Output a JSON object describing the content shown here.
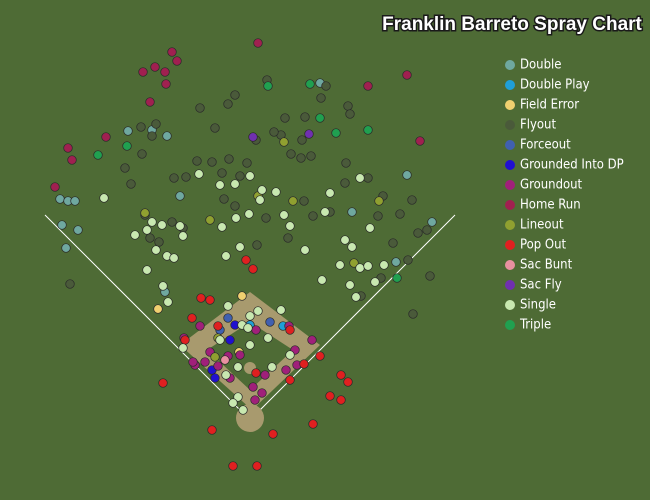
{
  "chart_data": {
    "type": "scatter",
    "title": "Franklin Barreto Spray Chart",
    "xlim": [
      0,
      260
    ],
    "ylim": [
      200,
      0
    ],
    "series": [
      {
        "name": "Double",
        "color": "#6fa8a0",
        "x": [
          24,
          27.2,
          30,
          24.8,
          31.2,
          26.4,
          51.2,
          60.8,
          66.8,
          128,
          162.8,
          172.8,
          140.8,
          72,
          158.4,
          66
        ],
        "y": [
          79.6,
          80.4,
          80.4,
          90,
          92,
          99.2,
          52.4,
          52,
          54.4,
          33.2,
          70,
          88.8,
          84.8,
          78.4,
          104.8,
          116.8
        ]
      },
      {
        "name": "Double Play",
        "color": "#1f9fd8",
        "x": [
          100,
          113.2
        ],
        "y": [
          130,
          130.4
        ]
      },
      {
        "name": "Field Error",
        "color": "#f0d070",
        "x": [
          96.8,
          63.2,
          95.6
        ],
        "y": [
          118.4,
          123.6,
          140.8
        ]
      },
      {
        "name": "Flyout",
        "color": "#4a5a3a",
        "x": [
          80,
          91.2,
          94,
          106.8,
          130.4,
          128.4,
          139.2,
          140,
          122,
          114,
          112.4,
          120.8,
          116.4,
          120.4,
          124.4,
          86,
          84.8,
          88.8,
          91.6,
          96,
          98.8,
          102.4,
          109.6,
          50,
          56.8,
          60.8,
          56.4,
          62.4,
          52.4,
          69.6,
          74.4,
          78.8,
          138.4,
          138,
          147.2,
          153.2,
          151.2,
          160,
          157.2,
          163.2,
          167.2,
          170.8,
          164.8,
          115.2,
          102.8,
          121.6,
          125.2,
          89.6,
          94,
          63.6,
          60,
          58,
          68.8,
          73.2,
          28,
          172,
          165.2,
          144.4,
          152.4,
          132,
          106.4
        ],
        "y": [
          43.2,
          41.6,
          38,
          32,
          34.4,
          39.2,
          42.4,
          45.6,
          46.8,
          47.2,
          54,
          56,
          61.6,
          63.2,
          62.4,
          51.2,
          64.8,
          69.2,
          63.6,
          70.4,
          65.2,
          56,
          52.8,
          67.2,
          61.6,
          54.4,
          50.8,
          49.6,
          73.6,
          71.2,
          70.8,
          64.4,
          65.2,
          73.2,
          71.2,
          78.4,
          86.4,
          85.6,
          97.2,
          104,
          93.2,
          92,
          80,
          95.2,
          98,
          80.4,
          86.4,
          79.6,
          82.4,
          96.8,
          95.2,
          86,
          88.8,
          91.2,
          113.6,
          110.4,
          125.6,
          118.4,
          111.2,
          84.8,
          87.2
        ]
      },
      {
        "name": "Forceout",
        "color": "#4060b0",
        "x": [
          88,
          108,
          91.2
        ],
        "y": [
          132,
          128.8,
          127.2
        ]
      },
      {
        "name": "Grounded Into DP",
        "color": "#2010d0",
        "x": [
          92,
          86,
          94,
          84.8
        ],
        "y": [
          136,
          151.2,
          130,
          148
        ]
      },
      {
        "name": "Groundout",
        "color": "#a0207a",
        "x": [
          80,
          84,
          82,
          78,
          87.2,
          92,
          91.2,
          96,
          102.4,
          115.6,
          118,
          118.8,
          114.4,
          124.8,
          101.2,
          104.8,
          102,
          106,
          73.6,
          77.2
        ],
        "y": [
          130.4,
          140.8,
          144.8,
          146,
          146.4,
          151.2,
          142.4,
          142,
          132,
          130.4,
          140,
          146,
          148,
          136,
          154.8,
          157.2,
          160,
          150,
          135.2,
          144.8
        ]
      },
      {
        "name": "Home Run",
        "color": "#a02050",
        "x": [
          68.8,
          57.2,
          62,
          66,
          70.8,
          103.2,
          60,
          42.4,
          27.2,
          28.8,
          22,
          147.2,
          162.8,
          168,
          66.4
        ],
        "y": [
          20.8,
          28.8,
          26.8,
          28.8,
          24.4,
          17.2,
          40.8,
          54.8,
          59.2,
          64,
          74.8,
          34.4,
          30,
          56.4,
          33.6
        ]
      },
      {
        "name": "Lineout",
        "color": "#90a030",
        "x": [
          58,
          84,
          103.2,
          113.6,
          117.2,
          151.6,
          141.6,
          86,
          87.2
        ],
        "y": [
          85.2,
          88,
          78.4,
          56.8,
          80.4,
          80.4,
          105.2,
          142.8,
          135.2
        ]
      },
      {
        "name": "Pop Out",
        "color": "#e02020",
        "x": [
          98.4,
          101.2,
          80.4,
          84,
          76.8,
          74,
          65.2,
          84.8,
          93.2,
          102.8,
          109.2,
          125.2,
          132,
          136.4,
          136.4,
          139.2,
          128,
          121.6,
          116,
          102.4,
          116,
          87.2
        ],
        "y": [
          104,
          107.6,
          119.2,
          120,
          127.2,
          136,
          153.2,
          172,
          186.4,
          186.4,
          173.6,
          169.6,
          158.4,
          160,
          150,
          152.8,
          142.4,
          145.6,
          152,
          149.2,
          132,
          130.4
        ]
      },
      {
        "name": "Sac Bunt",
        "color": "#e890a0",
        "x": [
          90
        ],
        "y": [
          144
        ]
      },
      {
        "name": "Sac Fly",
        "color": "#7030b0",
        "x": [
          101.2,
          123.6
        ],
        "y": [
          54.8,
          53.6
        ]
      },
      {
        "name": "Single",
        "color": "#c8e8b0",
        "x": [
          41.6,
          54,
          58.8,
          60.8,
          64.8,
          62.4,
          66.8,
          69.6,
          58.8,
          65.2,
          67.2,
          72,
          73.2,
          79.6,
          88,
          94,
          100,
          104.8,
          110.4,
          104,
          99.6,
          94.4,
          88.8,
          96,
          90.4,
          122,
          128.8,
          132,
          144,
          138,
          136,
          140.8,
          144,
          140,
          142.4,
          148,
          147.2,
          150,
          153.6,
          113.6,
          116,
          130,
          103.2,
          112.4,
          96.8,
          107.2,
          100,
          95.2,
          90.4,
          108.8,
          73.2,
          95.2,
          97.2,
          93.2,
          116,
          91.2,
          100,
          99.2,
          88
        ],
        "y": [
          79.2,
          94,
          92,
          88.8,
          90,
          100,
          102.4,
          103.2,
          108,
          114.4,
          120.8,
          90.4,
          94.4,
          69.6,
          74,
          73.6,
          70.4,
          76,
          76.8,
          80,
          85.6,
          87.2,
          90.8,
          98.8,
          102.4,
          100,
          112,
          77.2,
          71.2,
          96,
          106,
          98.8,
          107.2,
          114,
          118.8,
          91.2,
          106.4,
          112.8,
          106,
          86,
          90.4,
          84.8,
          124.4,
          124,
          130,
          135.2,
          138,
          146.8,
          150,
          146.8,
          139.2,
          158.8,
          164,
          161.2,
          142,
          122.4,
          126.4,
          131.2,
          136
        ]
      },
      {
        "name": "Triple",
        "color": "#20a050",
        "x": [
          107.2,
          124,
          134.4,
          147.2,
          39.2,
          50.8,
          128,
          158.8
        ],
        "y": [
          34.4,
          33.6,
          53.2,
          52,
          62,
          58.4,
          47.2,
          111.2
        ]
      }
    ]
  }
}
